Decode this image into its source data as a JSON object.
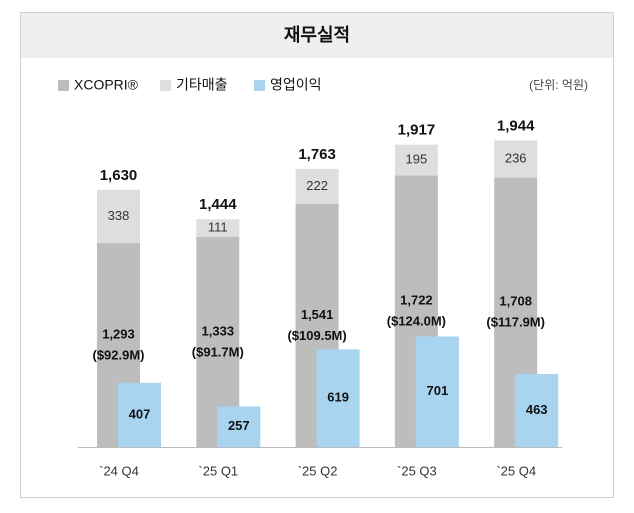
{
  "chart_data": {
    "type": "bar",
    "title": "재무실적",
    "unit_note": "(단위: 억원)",
    "categories": [
      "`24 Q4",
      "`25 Q1",
      "`25 Q2",
      "`25 Q3",
      "`25 Q4"
    ],
    "series": [
      {
        "name": "XCOPRI®",
        "color": "#bdbdbd",
        "stack": true,
        "values": [
          1293,
          1333,
          1541,
          1722,
          1708
        ],
        "value_labels": [
          "1,293",
          "1,333",
          "1,541",
          "1,722",
          "1,708"
        ],
        "sub_labels": [
          "($92.9M)",
          "($91.7M)",
          "($109.5M)",
          "($124.0M)",
          "($117.9M)"
        ]
      },
      {
        "name": "기타매출",
        "color": "#dedede",
        "stack": true,
        "values": [
          338,
          111,
          222,
          195,
          236
        ]
      },
      {
        "name": "영업이익",
        "color": "#a9d4f0",
        "stack": false,
        "values": [
          407,
          257,
          619,
          701,
          463
        ]
      }
    ],
    "totals": [
      1630,
      1444,
      1763,
      1917,
      1944
    ],
    "total_labels": [
      "1,630",
      "1,444",
      "1,763",
      "1,917",
      "1,944"
    ],
    "ylim": [
      0,
      2200
    ]
  }
}
